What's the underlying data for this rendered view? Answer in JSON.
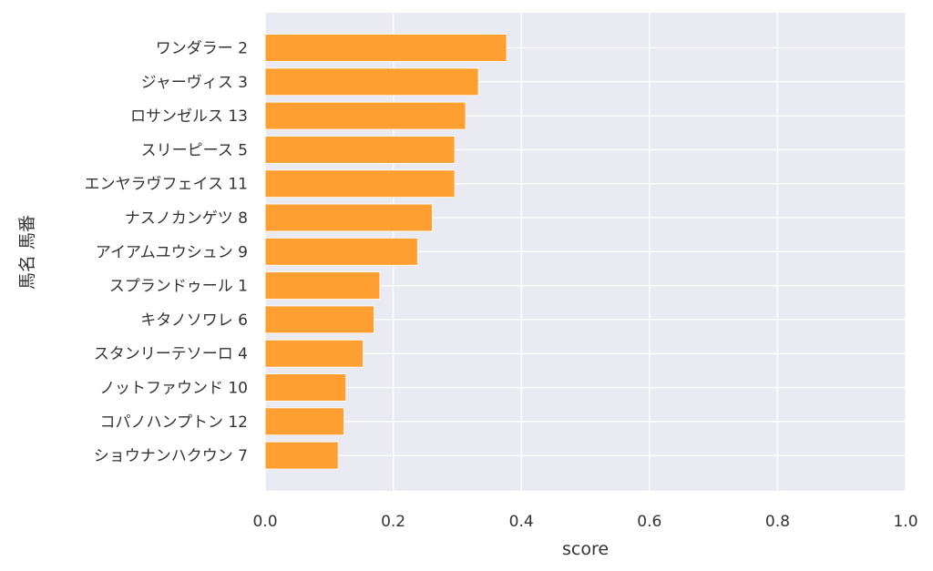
{
  "chart_data": {
    "type": "bar",
    "orientation": "horizontal",
    "title": "",
    "xlabel": "score",
    "ylabel": "馬名 馬番",
    "xlim": [
      0,
      1.0
    ],
    "xticks": [
      "0.0",
      "0.2",
      "0.4",
      "0.6",
      "0.8",
      "1.0"
    ],
    "grid": true,
    "bar_color": "#ff9f32",
    "background_color": "#eaeaf2",
    "categories": [
      "ワンダラー 2",
      "ジャーヴィス 3",
      "ロサンゼルス 13",
      "スリーピース 5",
      "エンヤラヴフェイス 11",
      "ナスノカンゲツ 8",
      "アイアムユウシュン 9",
      "スプランドゥール 1",
      "キタノソワレ 6",
      "スタンリーテソーロ 4",
      "ノットファウンド 10",
      "コパノハンプトン 12",
      "ショウナンハクウン 7"
    ],
    "values": [
      0.377,
      0.333,
      0.313,
      0.296,
      0.296,
      0.261,
      0.238,
      0.179,
      0.17,
      0.153,
      0.126,
      0.123,
      0.114
    ]
  }
}
